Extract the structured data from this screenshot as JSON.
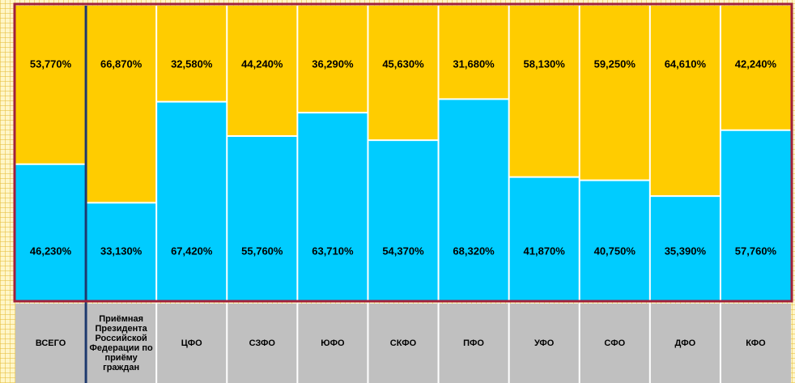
{
  "chart_data": {
    "type": "bar",
    "stacked": true,
    "categories": [
      "ВСЕГО",
      "Приёмная Президента Российской Федерации по приёму граждан",
      "ЦФО",
      "СЗФО",
      "ЮФО",
      "СКФО",
      "ПФО",
      "УФО",
      "СФО",
      "ДФО",
      "КФО"
    ],
    "series": [
      {
        "color": "#00ccff",
        "values": [
          46.23,
          33.13,
          67.42,
          55.76,
          63.71,
          54.37,
          68.32,
          41.87,
          40.75,
          35.39,
          57.76
        ],
        "value_labels": [
          "46,230%",
          "33,130%",
          "67,420%",
          "55,760%",
          "63,710%",
          "54,370%",
          "68,320%",
          "41,870%",
          "40,750%",
          "35,390%",
          "57,760%"
        ]
      },
      {
        "color": "#ffcc00",
        "values": [
          53.77,
          66.87,
          32.58,
          44.24,
          36.29,
          45.63,
          31.68,
          58.13,
          59.25,
          64.61,
          42.24
        ],
        "value_labels": [
          "53,770%",
          "66,870%",
          "32,580%",
          "44,240%",
          "36,290%",
          "45,630%",
          "31,680%",
          "58,130%",
          "59,250%",
          "64,610%",
          "42,240%"
        ]
      }
    ],
    "ylim": [
      0,
      100
    ]
  }
}
